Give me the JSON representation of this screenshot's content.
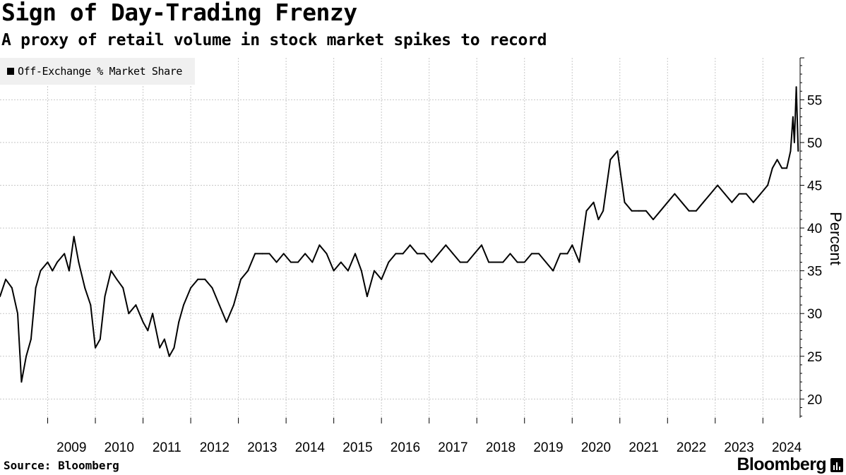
{
  "header": {
    "title": "Sign of Day-Trading Frenzy",
    "subtitle": "A proxy of retail volume in stock market spikes to record"
  },
  "footer": {
    "source": "Source: Bloomberg",
    "logo": "Bloomberg"
  },
  "colors": {
    "line": "#000000",
    "grid": "#c8c8c8",
    "legend_bg": "#f0f0f0"
  },
  "chart_data": {
    "type": "line",
    "title": "Sign of Day-Trading Frenzy",
    "subtitle": "A proxy of retail volume in stock market spikes to record",
    "ylabel": "Percent",
    "xlabel": "",
    "ylim": [
      17.8,
      59.9
    ],
    "xlim": [
      2008.0,
      2024.78
    ],
    "yticks": [
      20,
      25,
      30,
      35,
      40,
      45,
      50,
      55
    ],
    "xticks": [
      "2009",
      "2010",
      "2011",
      "2012",
      "2013",
      "2014",
      "2015",
      "2016",
      "2017",
      "2018",
      "2019",
      "2020",
      "2021",
      "2022",
      "2023",
      "2024"
    ],
    "grid": true,
    "legend": "top-left",
    "series": [
      {
        "name": "Off-Exchange % Market Share",
        "x": [
          2008.0,
          2008.12,
          2008.25,
          2008.37,
          2008.45,
          2008.55,
          2008.65,
          2008.75,
          2008.85,
          2009.0,
          2009.1,
          2009.2,
          2009.35,
          2009.45,
          2009.55,
          2009.65,
          2009.78,
          2009.9,
          2010.0,
          2010.1,
          2010.2,
          2010.33,
          2010.45,
          2010.58,
          2010.7,
          2010.85,
          2011.0,
          2011.1,
          2011.2,
          2011.35,
          2011.45,
          2011.55,
          2011.65,
          2011.75,
          2011.85,
          2012.0,
          2012.15,
          2012.3,
          2012.45,
          2012.6,
          2012.75,
          2012.9,
          2013.05,
          2013.2,
          2013.35,
          2013.5,
          2013.65,
          2013.8,
          2013.95,
          2014.1,
          2014.25,
          2014.4,
          2014.55,
          2014.7,
          2014.85,
          2015.0,
          2015.15,
          2015.3,
          2015.45,
          2015.58,
          2015.7,
          2015.85,
          2016.0,
          2016.15,
          2016.3,
          2016.45,
          2016.6,
          2016.75,
          2016.9,
          2017.05,
          2017.2,
          2017.35,
          2017.5,
          2017.65,
          2017.8,
          2017.95,
          2018.1,
          2018.25,
          2018.4,
          2018.55,
          2018.7,
          2018.85,
          2019.0,
          2019.15,
          2019.3,
          2019.45,
          2019.6,
          2019.75,
          2019.9,
          2020.0,
          2020.15,
          2020.3,
          2020.45,
          2020.55,
          2020.65,
          2020.8,
          2020.95,
          2021.1,
          2021.25,
          2021.4,
          2021.55,
          2021.7,
          2021.85,
          2022.0,
          2022.15,
          2022.3,
          2022.45,
          2022.6,
          2022.75,
          2022.9,
          2023.05,
          2023.2,
          2023.35,
          2023.5,
          2023.65,
          2023.8,
          2023.95,
          2024.1,
          2024.2,
          2024.3,
          2024.4,
          2024.5,
          2024.58,
          2024.63,
          2024.66,
          2024.7,
          2024.74
        ],
        "values": [
          32,
          34,
          33,
          30,
          22,
          25,
          27,
          33,
          35,
          36,
          35,
          36,
          37,
          35,
          39,
          36,
          33,
          31,
          26,
          27,
          32,
          35,
          34,
          33,
          30,
          31,
          29,
          28,
          30,
          26,
          27,
          25,
          26,
          29,
          31,
          33,
          34,
          34,
          33,
          31,
          29,
          31,
          34,
          35,
          37,
          37,
          37,
          36,
          37,
          36,
          36,
          37,
          36,
          38,
          37,
          35,
          36,
          35,
          37,
          35,
          32,
          35,
          34,
          36,
          37,
          37,
          38,
          37,
          37,
          36,
          37,
          38,
          37,
          36,
          36,
          37,
          38,
          36,
          36,
          36,
          37,
          36,
          36,
          37,
          37,
          36,
          35,
          37,
          37,
          38,
          36,
          42,
          43,
          41,
          42,
          48,
          49,
          43,
          42,
          42,
          42,
          41,
          42,
          43,
          44,
          43,
          42,
          42,
          43,
          44,
          45,
          44,
          43,
          44,
          44,
          43,
          44,
          45,
          47,
          48,
          47,
          47,
          49,
          53,
          50,
          56.5,
          49
        ]
      }
    ]
  }
}
